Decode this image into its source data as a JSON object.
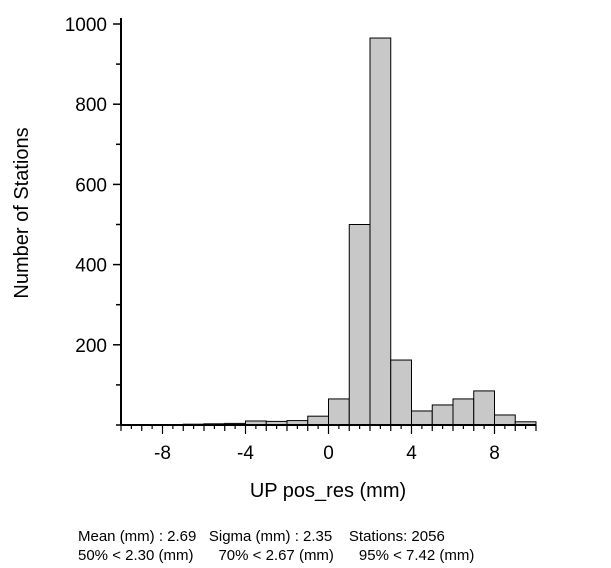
{
  "chart_data": {
    "type": "bar",
    "xlabel": "UP  pos_res (mm)",
    "ylabel": "Number of Stations",
    "xlim": [
      -10,
      10
    ],
    "ylim": [
      0,
      1000
    ],
    "bin_width": 1,
    "xticks": [
      -8,
      -4,
      0,
      4,
      8
    ],
    "yticks": [
      200,
      400,
      600,
      800,
      1000
    ],
    "bins": [
      {
        "start": -10,
        "value": 1
      },
      {
        "start": -9,
        "value": 1
      },
      {
        "start": -8,
        "value": 1
      },
      {
        "start": -7,
        "value": 2
      },
      {
        "start": -6,
        "value": 3
      },
      {
        "start": -5,
        "value": 4
      },
      {
        "start": -4,
        "value": 10
      },
      {
        "start": -3,
        "value": 9
      },
      {
        "start": -2,
        "value": 11
      },
      {
        "start": -1,
        "value": 22
      },
      {
        "start": 0,
        "value": 65
      },
      {
        "start": 1,
        "value": 500
      },
      {
        "start": 2,
        "value": 965
      },
      {
        "start": 3,
        "value": 162
      },
      {
        "start": 4,
        "value": 35
      },
      {
        "start": 5,
        "value": 50
      },
      {
        "start": 6,
        "value": 65
      },
      {
        "start": 7,
        "value": 85
      },
      {
        "start": 8,
        "value": 25
      },
      {
        "start": 9,
        "value": 8
      }
    ]
  },
  "stats": {
    "line1": "Mean (mm) : 2.69   Sigma (mm) : 2.35    Stations: 2056",
    "line2": "50% < 2.30 (mm)      70% < 2.67 (mm)      95% < 7.42 (mm)"
  },
  "colors": {
    "bar_fill": "#c8c8c8",
    "bar_stroke": "#000000",
    "axis": "#000000"
  }
}
